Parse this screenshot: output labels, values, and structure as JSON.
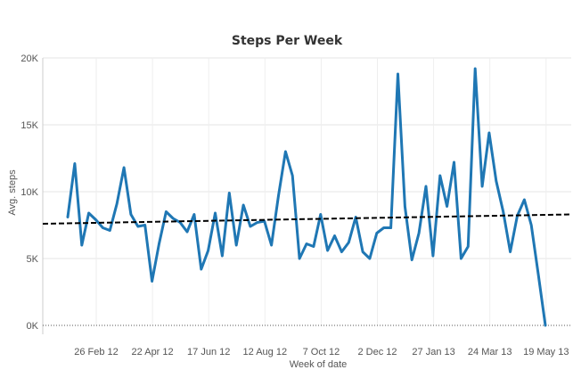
{
  "chart_data": {
    "type": "line",
    "title": "Steps Per Week",
    "xlabel": "Week of date",
    "ylabel": "Avg. steps",
    "ylim": [
      0,
      20000
    ],
    "grid": true,
    "legend": "none",
    "y_ticks": [
      {
        "value": 0,
        "label": "0K"
      },
      {
        "value": 5000,
        "label": "5K"
      },
      {
        "value": 10000,
        "label": "10K"
      },
      {
        "value": 15000,
        "label": "15K"
      },
      {
        "value": 20000,
        "label": "20K"
      }
    ],
    "x_ticks": [
      "26 Feb 12",
      "22 Apr 12",
      "17 Jun 12",
      "12 Aug 12",
      "7 Oct 12",
      "2 Dec 12",
      "27 Jan 13",
      "24 Mar 13",
      "19 May 13"
    ],
    "series": [
      {
        "values": [
          8100,
          12100,
          6000,
          8400,
          7900,
          7300,
          7100,
          9100,
          11800,
          8300,
          7400,
          7500,
          3300,
          6100,
          8500,
          8000,
          7700,
          7000,
          8300,
          4200,
          5600,
          8400,
          5200,
          9900,
          6000,
          9000,
          7400,
          7700,
          7800,
          6000,
          9700,
          13000,
          11200,
          5000,
          6100,
          5900,
          8300,
          5600,
          6700,
          5500,
          6200,
          8100,
          5500,
          5000,
          6900,
          7300,
          7300,
          18800,
          8900,
          4900,
          6900,
          10400,
          5200,
          11200,
          8900,
          12200,
          5000,
          5900,
          19200,
          10400,
          14400,
          10800,
          8500,
          5500,
          8200,
          9400,
          7500,
          3800,
          0
        ],
        "color": "#1f77b4"
      }
    ],
    "trend_line": {
      "start_value": 7600,
      "end_value": 8300,
      "color": "#000000",
      "style": "dashed"
    }
  }
}
